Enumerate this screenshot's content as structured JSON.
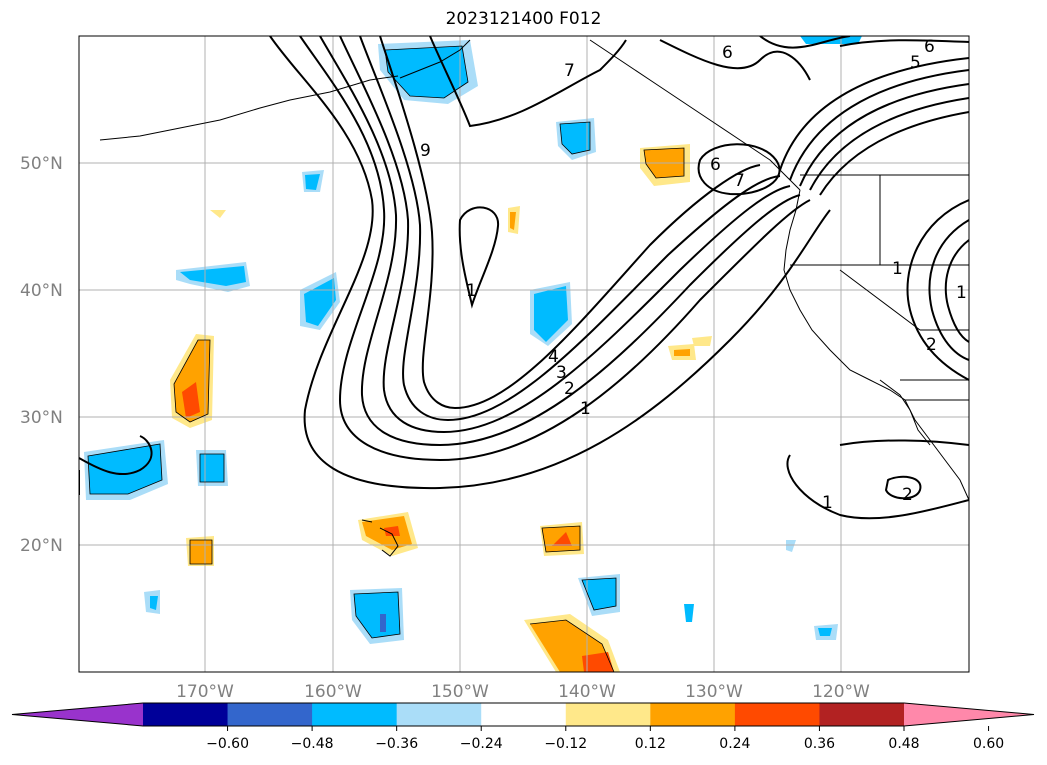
{
  "title": "2023121400 F012",
  "lat_labels": [
    {
      "text": "50°N",
      "lat": 50
    },
    {
      "text": "40°N",
      "lat": 40
    },
    {
      "text": "30°N",
      "lat": 30
    },
    {
      "text": "20°N",
      "lat": 20
    }
  ],
  "lon_labels": [
    {
      "text": "170°W",
      "lon": -170
    },
    {
      "text": "160°W",
      "lon": -160
    },
    {
      "text": "150°W",
      "lon": -150
    },
    {
      "text": "140°W",
      "lon": -140
    },
    {
      "text": "130°W",
      "lon": -130
    },
    {
      "text": "120°W",
      "lon": -120
    }
  ],
  "colorbar": {
    "colors": [
      "#9933cc",
      "#000099",
      "#3366cc",
      "#00bbff",
      "#aaddf8",
      "#ffffff",
      "#ffe88a",
      "#ffa200",
      "#ff4a00",
      "#b22222",
      "#ff88aa"
    ],
    "tick_labels": [
      "−0.60",
      "−0.48",
      "−0.36",
      "−0.24",
      "−0.12",
      "0.12",
      "0.24",
      "0.36",
      "0.48",
      "0.60"
    ]
  },
  "contour_labels": [
    "7",
    "6",
    "9",
    "1",
    "4",
    "3",
    "2",
    "1",
    "6",
    "7",
    "5",
    "6",
    "1",
    "2",
    "1",
    "1",
    "2"
  ]
}
